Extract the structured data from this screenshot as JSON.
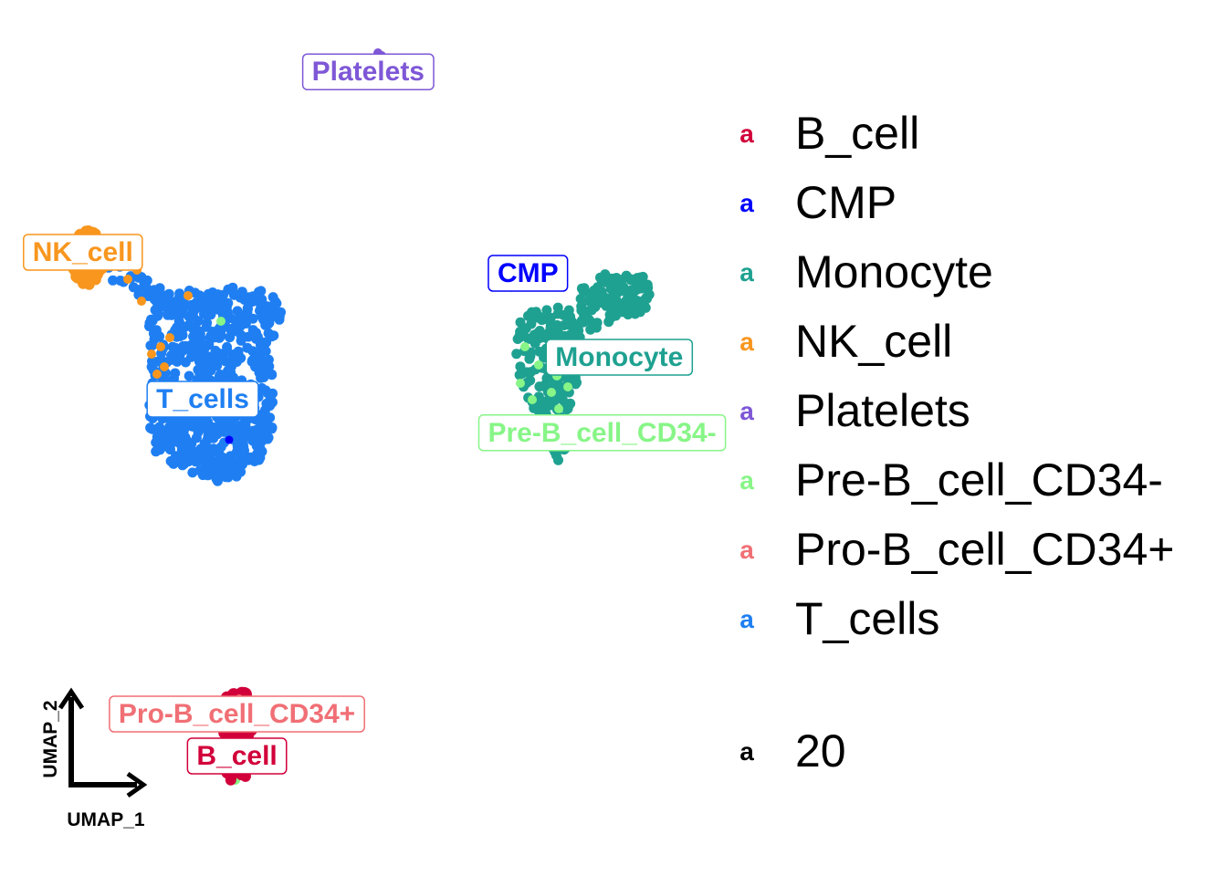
{
  "chart_data": {
    "type": "scatter",
    "xlabel": "UMAP_1",
    "ylabel": "UMAP_2",
    "grid": false,
    "legend_position": "right",
    "clusters": [
      {
        "name": "B_cell",
        "color": "#D2003A",
        "center": [
          0.1,
          -7.5
        ]
      },
      {
        "name": "CMP",
        "color": "#0000FF",
        "center": [
          5.2,
          4.0
        ]
      },
      {
        "name": "Monocyte",
        "color": "#1FA191",
        "center": [
          6.8,
          2.0
        ]
      },
      {
        "name": "NK_cell",
        "color": "#F8961E",
        "center": [
          -2.6,
          4.5
        ]
      },
      {
        "name": "Platelets",
        "color": "#7E57D6",
        "center": [
          2.4,
          8.8
        ]
      },
      {
        "name": "Pre-B_cell_CD34-",
        "color": "#87F587",
        "center": [
          6.5,
          0.2
        ]
      },
      {
        "name": "Pro-B_cell_CD34+",
        "color": "#F06F75",
        "center": [
          0.1,
          -6.5
        ]
      },
      {
        "name": "T_cells",
        "color": "#1F7FF2",
        "center": [
          -0.5,
          1.0
        ]
      }
    ],
    "legend": {
      "items": [
        {
          "key": "a",
          "label": "B_cell",
          "color": "#D2003A"
        },
        {
          "key": "a",
          "label": "CMP",
          "color": "#0000FF"
        },
        {
          "key": "a",
          "label": "Monocyte",
          "color": "#1FA191"
        },
        {
          "key": "a",
          "label": "NK_cell",
          "color": "#F8961E"
        },
        {
          "key": "a",
          "label": "Platelets",
          "color": "#7E57D6"
        },
        {
          "key": "a",
          "label": "Pre-B_cell_CD34-",
          "color": "#87F587"
        },
        {
          "key": "a",
          "label": "Pro-B_cell_CD34+",
          "color": "#F06F75"
        },
        {
          "key": "a",
          "label": "T_cells",
          "color": "#1F7FF2"
        }
      ],
      "size_key": {
        "key": "a",
        "label": "20",
        "color": "#000000"
      }
    }
  }
}
